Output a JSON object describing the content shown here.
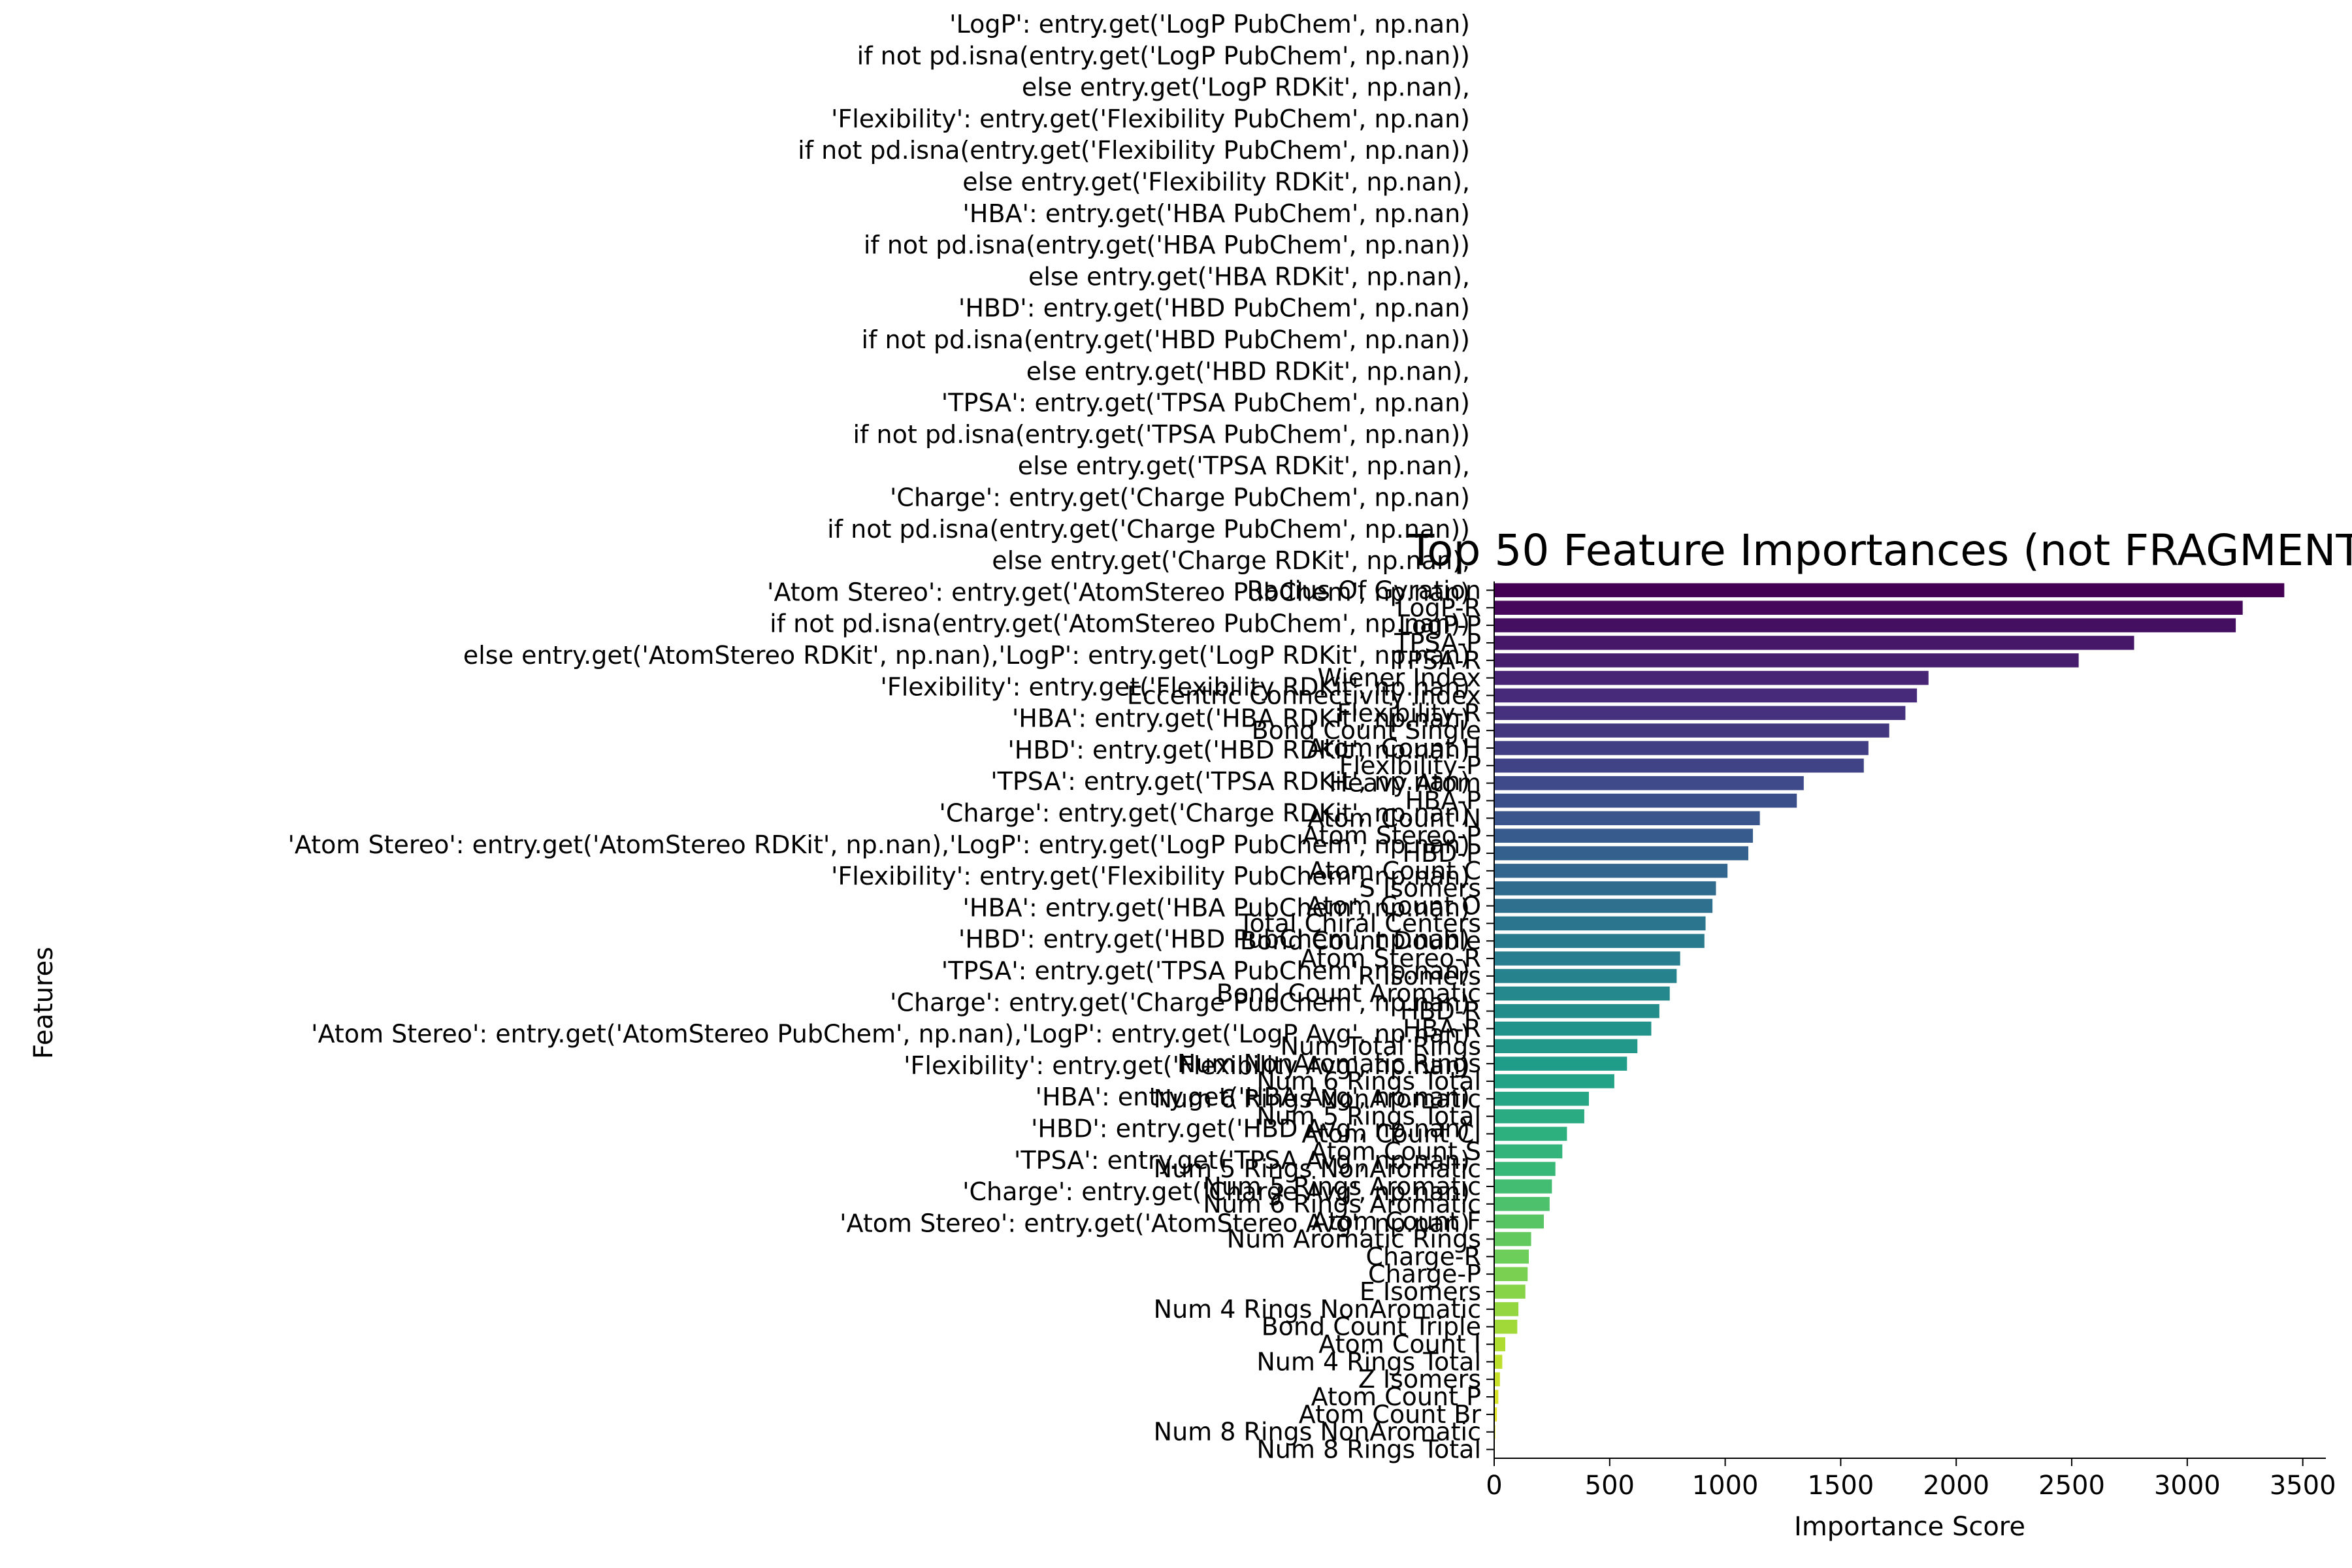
{
  "chart_data": {
    "type": "bar",
    "orientation": "horizontal",
    "title": "Top 50 Feature Importances (not FRAGMENT",
    "xlabel": "Importance Score",
    "ylabel": "Features",
    "xlim": [
      0,
      3600
    ],
    "xticks": [
      "0",
      "500",
      "1000",
      "1500",
      "2000",
      "2500",
      "3000",
      "3500"
    ],
    "grid": false,
    "legend": "none",
    "colormap": "viridis",
    "overlay_text_lines": [
      "'LogP': entry.get('LogP PubChem', np.nan)",
      "if not pd.isna(entry.get('LogP PubChem', np.nan))",
      "else entry.get('LogP RDKit', np.nan),",
      "'Flexibility': entry.get('Flexibility PubChem', np.nan)",
      "if not pd.isna(entry.get('Flexibility PubChem', np.nan))",
      "else entry.get('Flexibility RDKit', np.nan),",
      "'HBA': entry.get('HBA PubChem', np.nan)",
      "if not pd.isna(entry.get('HBA PubChem', np.nan))",
      "else entry.get('HBA RDKit', np.nan),",
      "'HBD': entry.get('HBD PubChem', np.nan)",
      "if not pd.isna(entry.get('HBD PubChem', np.nan))",
      "else entry.get('HBD RDKit', np.nan),",
      "'TPSA': entry.get('TPSA PubChem', np.nan)",
      "if not pd.isna(entry.get('TPSA PubChem', np.nan))",
      "else entry.get('TPSA RDKit', np.nan),",
      "'Charge': entry.get('Charge PubChem', np.nan)",
      "if not pd.isna(entry.get('Charge PubChem', np.nan))",
      "else entry.get('Charge RDKit', np.nan),",
      "'Atom Stereo': entry.get('AtomStereo PubChem', np.nan)",
      "if not pd.isna(entry.get('AtomStereo PubChem', np.nan))",
      "else entry.get('AtomStereo RDKit', np.nan),'LogP': entry.get('LogP RDKit', np.nan)",
      "'Flexibility': entry.get('Flexibility RDKit', np.nan)",
      "'HBA': entry.get('HBA RDKit', np.nan)",
      "'HBD': entry.get('HBD RDKit', np.nan)",
      "'TPSA': entry.get('TPSA RDKit', np.nan)",
      "'Charge': entry.get('Charge RDKit', np.nan)",
      "'Atom Stereo': entry.get('AtomStereo RDKit', np.nan),'LogP': entry.get('LogP PubChem', np.nan)",
      "'Flexibility': entry.get('Flexibility PubChem', np.nan)",
      "'HBA': entry.get('HBA PubChem', np.nan)",
      "'HBD': entry.get('HBD PubChem', np.nan)",
      "'TPSA': entry.get('TPSA PubChem', np.nan)",
      "'Charge': entry.get('Charge PubChem', np.nan)",
      "'Atom Stereo': entry.get('AtomStereo PubChem', np.nan),'LogP': entry.get('LogP Avg', np.nan)",
      "'Flexibility': entry.get('Flexibility Avg', np.nan)",
      "'HBA': entry.get('HBA Avg', np.nan)",
      "'HBD': entry.get('HBD Avg', np.nan)",
      "'TPSA': entry.get('TPSA Avg', np.nan)",
      "'Charge': entry.get('Charge Avg', np.nan)",
      "'Atom Stereo': entry.get('AtomStereo Avg', np.nan)"
    ],
    "categories": [
      "Radius Of Gyration",
      "LogP-R",
      "LogP-P",
      "TPSA-P",
      "TPSA-R",
      "Wiener Index",
      "Eccentric Connectivity Index",
      "Flexibility-R",
      "Bond Count Single",
      "Atom Count H",
      "Flexibility-P",
      "Heavy Atom",
      "HBA-P",
      "Atom Count N",
      "Atom Stereo-P",
      "HBD-P",
      "Atom Count C",
      "S Isomers",
      "Atom Count O",
      "Total Chiral Centers",
      "Bond Count Double",
      "Atom Stereo-R",
      "R Isomers",
      "Bond Count Aromatic",
      "HBD-R",
      "HBA-R",
      "Num Total Rings",
      "Num NonAromatic Rings",
      "Num 6 Rings Total",
      "Num 6 Rings NonAromatic",
      "Num 5 Rings Total",
      "Atom Count Cl",
      "Atom Count S",
      "Num 5 Rings NonAromatic",
      "Num 5 Rings Aromatic",
      "Num 6 Rings Aromatic",
      "Atom Count F",
      "Num Aromatic Rings",
      "Charge-R",
      "Charge-P",
      "E Isomers",
      "Num 4 Rings NonAromatic",
      "Bond Count Triple",
      "Atom Count I",
      "Num 4 Rings Total",
      "Z Isomers",
      "Atom Count P",
      "Atom Count Br",
      "Num 8 Rings NonAromatic",
      "Num 8 Rings Total"
    ],
    "values": [
      3420,
      3240,
      3210,
      2770,
      2530,
      1880,
      1830,
      1780,
      1710,
      1620,
      1600,
      1340,
      1310,
      1150,
      1120,
      1100,
      1010,
      960,
      945,
      915,
      910,
      805,
      790,
      760,
      715,
      680,
      620,
      575,
      520,
      410,
      390,
      315,
      295,
      265,
      250,
      240,
      215,
      160,
      150,
      145,
      135,
      105,
      100,
      48,
      35,
      25,
      18,
      12,
      5,
      3
    ]
  }
}
